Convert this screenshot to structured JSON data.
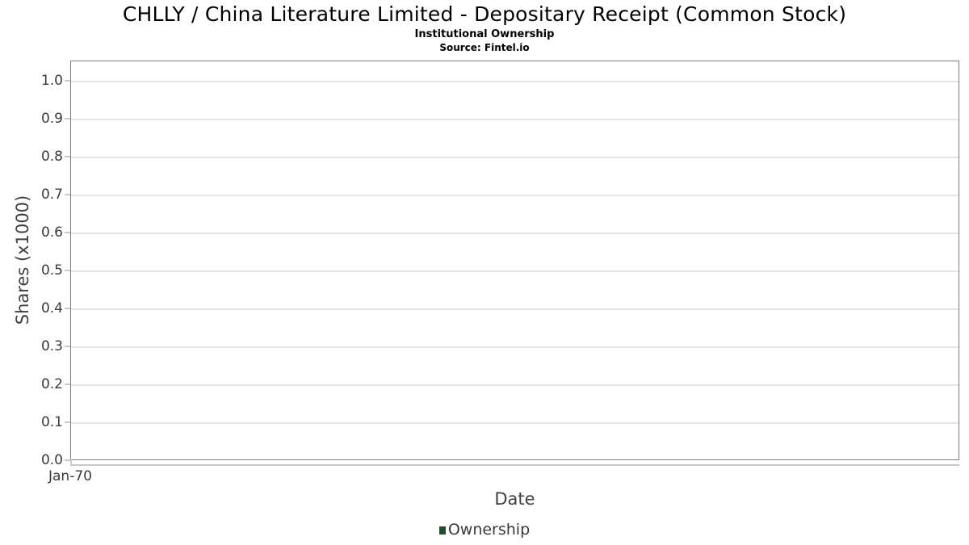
{
  "chart_data": {
    "type": "line",
    "title": "CHLLY / China Literature Limited - Depositary Receipt (Common Stock)",
    "subtitle": "Institutional Ownership",
    "source": "Source: Fintel.io",
    "xlabel": "Date",
    "ylabel": "Shares (x1000)",
    "ylim": [
      0.0,
      1.0
    ],
    "y_ticks": [
      "0.0",
      "0.1",
      "0.2",
      "0.3",
      "0.4",
      "0.5",
      "0.6",
      "0.7",
      "0.8",
      "0.9",
      "1.0"
    ],
    "x_ticks": [
      "Jan-70"
    ],
    "grid": "horizontal",
    "legend": {
      "position": "bottom",
      "entries": [
        {
          "label": "Ownership",
          "color": "#1e4d2c"
        }
      ]
    },
    "series": [
      {
        "name": "Ownership",
        "color": "#1e4d2c",
        "x": [],
        "values": []
      }
    ],
    "colors": {
      "grid": "#e5e5e5",
      "plot_border": "#7d7d7d",
      "axis_line": "#c8c8c8",
      "tick_mark": "#c8c8c8",
      "tick_text": "#3a3a3a",
      "axis_label_text": "#404040",
      "title_text": "#000000"
    }
  }
}
